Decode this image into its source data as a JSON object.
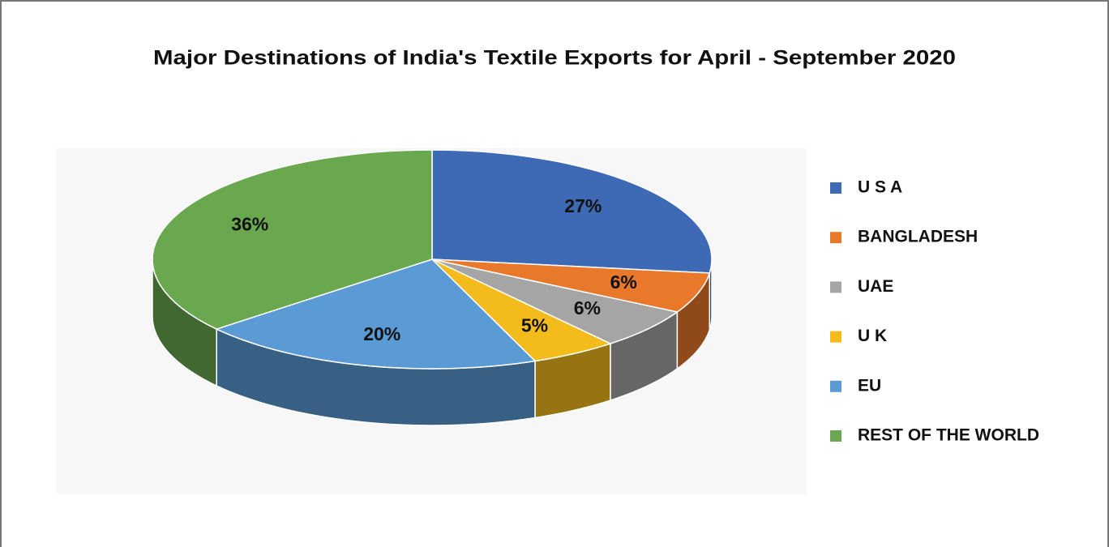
{
  "chart_data": {
    "type": "pie3d",
    "title": "Major Destinations of India's Textile Exports for April - September 2020",
    "categories": [
      "U S A",
      "BANGLADESH",
      "UAE",
      "U K",
      "EU",
      "REST OF THE WORLD"
    ],
    "values": [
      27,
      6,
      6,
      5,
      20,
      36
    ],
    "value_labels": [
      "27%",
      "6%",
      "6%",
      "5%",
      "20%",
      "36%"
    ],
    "colors": [
      "#3e69b4",
      "#e8782a",
      "#a5a5a5",
      "#f3bb1b",
      "#5b9bd5",
      "#6aa84f"
    ],
    "legend": "right"
  }
}
